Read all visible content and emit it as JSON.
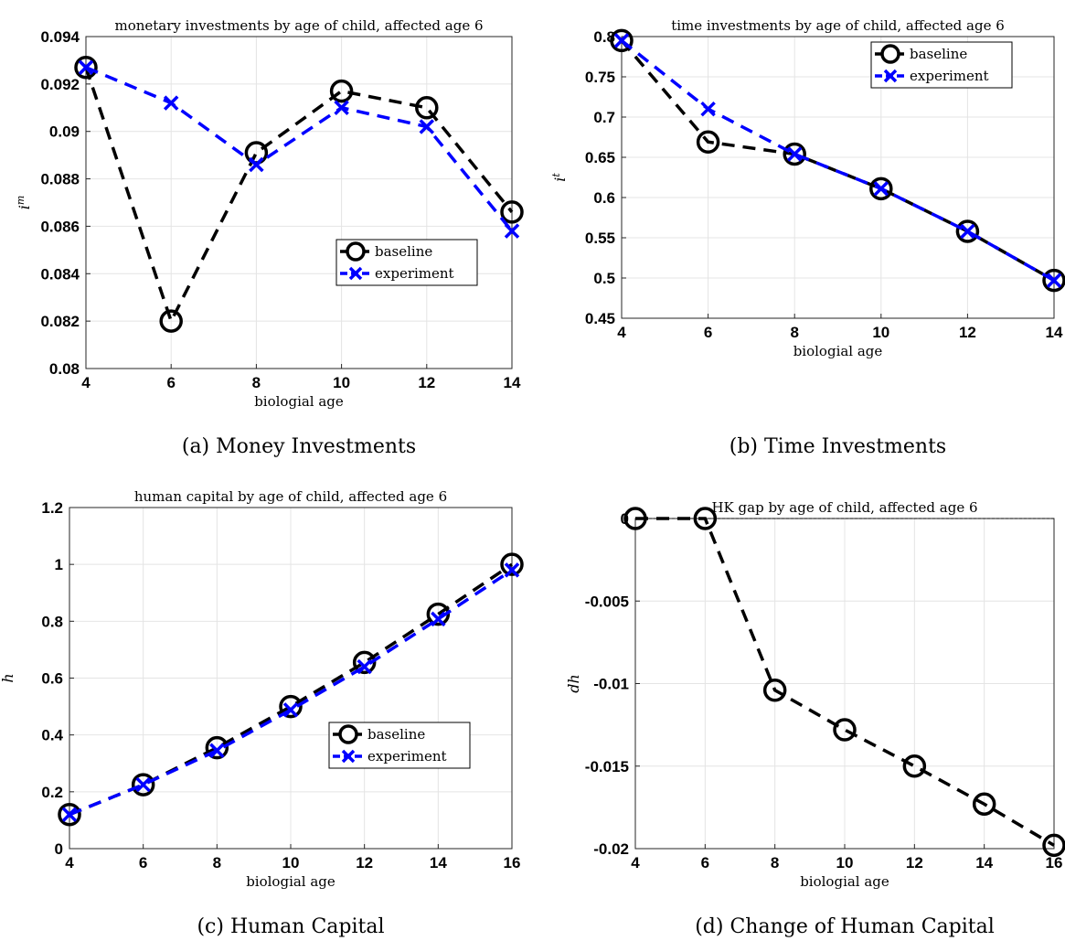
{
  "chart_data": [
    {
      "type": "line",
      "title": "monetary investments by age of child, affected age 6",
      "xlabel": "biologial age",
      "ylabel": "i",
      "ylabel_sup": "m",
      "caption": "(a) Money Investments",
      "x": [
        4,
        6,
        8,
        10,
        12,
        14
      ],
      "xlim": [
        4,
        14
      ],
      "xticks": [
        4,
        6,
        8,
        10,
        12,
        14
      ],
      "ylim": [
        0.08,
        0.094
      ],
      "yticks": [
        "0.08",
        "0.082",
        "0.084",
        "0.086",
        "0.088",
        "0.09",
        "0.092",
        "0.094"
      ],
      "grid": true,
      "legend": "center-right",
      "series": [
        {
          "name": "baseline",
          "color": "#000000",
          "marker": "circle",
          "values": [
            0.0927,
            0.082,
            0.0891,
            0.0917,
            0.091,
            0.0866
          ]
        },
        {
          "name": "experiment",
          "color": "#0000ff",
          "marker": "x",
          "values": [
            0.0927,
            0.0912,
            0.0886,
            0.091,
            0.0902,
            0.0858
          ]
        }
      ]
    },
    {
      "type": "line",
      "title": "time investments by age of child, affected age 6",
      "xlabel": "biologial age",
      "ylabel": "i",
      "ylabel_sup": "t",
      "caption": "(b) Time Investments",
      "x": [
        4,
        6,
        8,
        10,
        12,
        14
      ],
      "xlim": [
        4,
        14
      ],
      "xticks": [
        4,
        6,
        8,
        10,
        12,
        14
      ],
      "ylim": [
        0.45,
        0.8
      ],
      "yticks": [
        "0.45",
        "0.5",
        "0.55",
        "0.6",
        "0.65",
        "0.7",
        "0.75",
        "0.8"
      ],
      "grid": true,
      "legend": "top-right",
      "series": [
        {
          "name": "baseline",
          "color": "#000000",
          "marker": "circle",
          "values": [
            0.795,
            0.669,
            0.654,
            0.611,
            0.558,
            0.497
          ]
        },
        {
          "name": "experiment",
          "color": "#0000ff",
          "marker": "x",
          "values": [
            0.795,
            0.71,
            0.654,
            0.611,
            0.558,
            0.497
          ]
        }
      ]
    },
    {
      "type": "line",
      "title": "human capital by age of child, affected age 6",
      "xlabel": "biologial age",
      "ylabel": "h",
      "ylabel_sup": "",
      "caption": "(c) Human Capital",
      "x": [
        4,
        6,
        8,
        10,
        12,
        14,
        16
      ],
      "xlim": [
        4,
        16
      ],
      "xticks": [
        4,
        6,
        8,
        10,
        12,
        14,
        16
      ],
      "ylim": [
        0,
        1.2
      ],
      "yticks": [
        "0",
        "0.2",
        "0.4",
        "0.6",
        "0.8",
        "1",
        "1.2"
      ],
      "grid": true,
      "legend": "center-right",
      "series": [
        {
          "name": "baseline",
          "color": "#000000",
          "marker": "circle",
          "values": [
            0.12,
            0.225,
            0.355,
            0.5,
            0.655,
            0.825,
            1.0
          ]
        },
        {
          "name": "experiment",
          "color": "#0000ff",
          "marker": "x",
          "values": [
            0.12,
            0.225,
            0.345,
            0.488,
            0.64,
            0.808,
            0.98
          ]
        }
      ]
    },
    {
      "type": "line",
      "title": "HK gap by age of child, affected age 6",
      "xlabel": "biologial age",
      "ylabel": "dh",
      "ylabel_sup": "",
      "caption": "(d) Change of Human Capital",
      "x": [
        4,
        6,
        8,
        10,
        12,
        14,
        16
      ],
      "xlim": [
        4,
        16
      ],
      "xticks": [
        4,
        6,
        8,
        10,
        12,
        14,
        16
      ],
      "ylim": [
        -0.02,
        0
      ],
      "yticks": [
        "-0.02",
        "-0.015",
        "-0.01",
        "-0.005",
        "0"
      ],
      "grid": true,
      "legend": "none",
      "series": [
        {
          "color": "#000000",
          "marker": "circle",
          "values": [
            0,
            0,
            -0.0104,
            -0.0128,
            -0.015,
            -0.0173,
            -0.0198
          ]
        }
      ]
    }
  ]
}
